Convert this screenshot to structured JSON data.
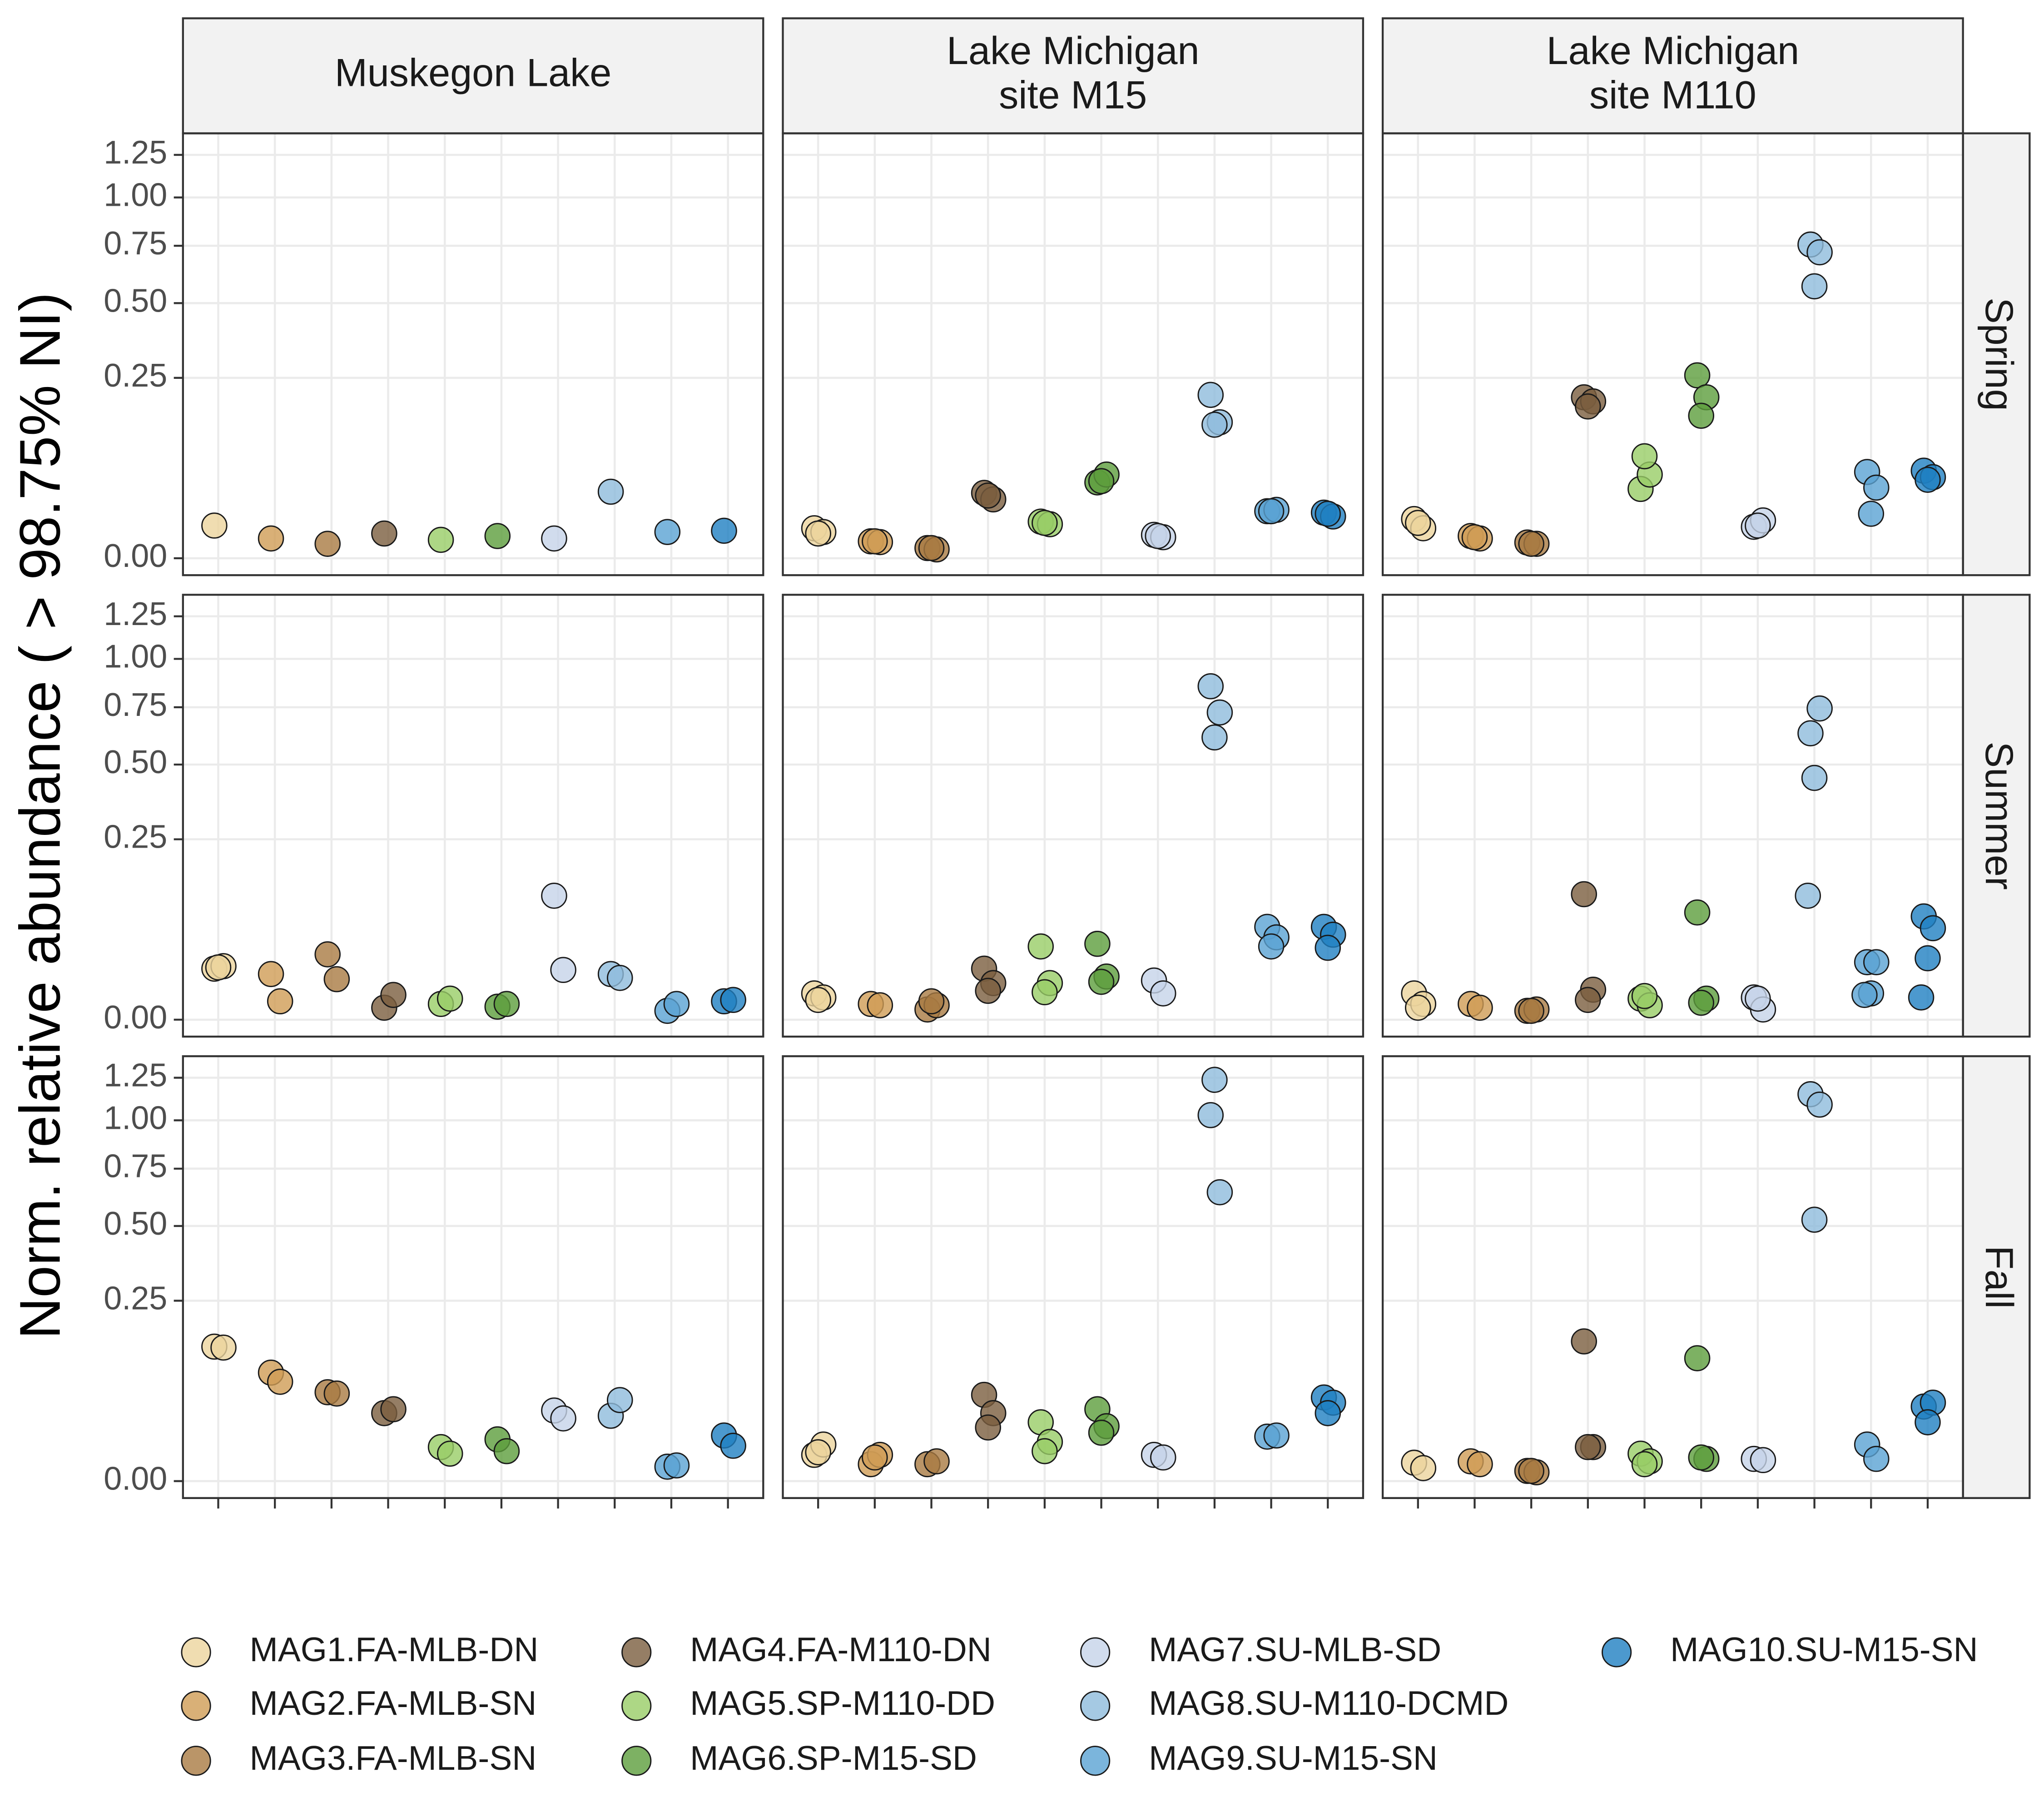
{
  "chart_data": {
    "type": "scatter",
    "y_label": "Norm. relative abundance ( > 98.75% NI)",
    "y_scale": "sqrt",
    "ylim": [
      -0.0022,
      1.387
    ],
    "yticks": [
      {
        "value": 0,
        "label": "0.00"
      },
      0.25,
      {
        "value": 0.5,
        "label": "0.50"
      },
      0.75,
      {
        "value": 1,
        "label": "1.00"
      },
      1.25
    ],
    "grid": true,
    "categories": [
      null,
      null,
      null,
      null,
      null,
      null,
      null,
      null,
      null,
      null
    ],
    "facet_columns": [
      [
        "Muskegon Lake"
      ],
      [
        "Lake Michigan",
        "site M15"
      ],
      [
        "Lake Michigan",
        "site M110"
      ]
    ],
    "facet_rows": [
      "Spring",
      "Summer",
      "Fall"
    ],
    "legend_position": "bottom",
    "series": [
      {
        "name": "MAG1.FA-MLB-DN",
        "color": "#ecd49d",
        "values": [
          [
            [
              0.0082
            ],
            [
              0.0069,
              0.0053,
              0.0047
            ],
            [
              0.0118,
              0.0069,
              0.0096
            ]
          ],
          [
            [
              0.02,
              0.022,
              0.021
            ],
            [
              0.0053,
              0.0038,
              0.003
            ],
            [
              0.0053,
              0.0019,
              0.0011
            ]
          ],
          [
            [
              0.139,
              0.137
            ],
            [
              0.0053,
              0.0103,
              0.0064
            ],
            [
              0.0026,
              0.0013
            ]
          ]
        ]
      },
      {
        "name": "MAG2.FA-MLB-SN",
        "color": "#d09c55",
        "values": [
          [
            [
              0.003
            ],
            [
              0.0022,
              0.002,
              0.0022
            ],
            [
              0.0038,
              0.003,
              0.0034
            ]
          ],
          [
            [
              0.016,
              0.0026
            ],
            [
              0.0019,
              0.0016
            ],
            [
              0.0019,
              0.0011
            ]
          ],
          [
            [
              0.0904,
              0.0758
            ],
            [
              0.0022,
              0.0053,
              0.0043
            ],
            [
              0.003,
              0.0022
            ]
          ]
        ]
      },
      {
        "name": "MAG3.FA-MLB-SN",
        "color": "#a97a42",
        "values": [
          [
            [
              0.0016
            ],
            [
              0.0008,
              0.0006,
              0.0008
            ],
            [
              0.0019,
              0.0016,
              0.0016
            ]
          ],
          [
            [
              0.0328,
              0.0126
            ],
            [
              0.0008,
              0.0016,
              0.0026
            ],
            [
              0.0006,
              0.0008,
              0.0006
            ]
          ],
          [
            [
              0.0607,
              0.0589
            ],
            [
              0.0022,
              0.003
            ],
            [
              0.0008,
              0.0006,
              0.0008
            ]
          ]
        ]
      },
      {
        "name": "MAG4.FA-M110-DN",
        "color": "#7a5e3e",
        "values": [
          [
            [
              0.0047
            ],
            [
              0.0328,
              0.0266,
              0.0302
            ],
            [
              0.199,
              0.189,
              0.177
            ]
          ],
          [
            [
              0.0011,
              0.0047
            ],
            [
              0.02,
              0.0103,
              0.0064
            ],
            [
              0.121,
              0.0069,
              0.003
            ]
          ],
          [
            [
              0.0355,
              0.0397
            ],
            [
              0.0572,
              0.0355,
              0.0221
            ],
            [
              0.15,
              0.0089,
              0.0089
            ]
          ]
        ]
      },
      {
        "name": "MAG5.SP-M110-DD",
        "color": "#98cd66",
        "values": [
          [
            [
              0.0026
            ],
            [
              0.0103,
              0.0089,
              0.0096
            ],
            [
              0.0369,
              0.0538,
              0.0799
            ]
          ],
          [
            [
              0.0019,
              0.0034
            ],
            [
              0.0412,
              0.0103,
              0.0058
            ],
            [
              0.0034,
              0.0016,
              0.0043
            ]
          ],
          [
            [
              0.0089,
              0.0058
            ],
            [
              0.0266,
              0.0118,
              0.0069
            ],
            [
              0.0058,
              0.003,
              0.0022
            ]
          ]
        ]
      },
      {
        "name": "MAG6.SP-M15-SD",
        "color": "#5c9e3c",
        "values": [
          [
            [
              0.0038
            ],
            [
              0.0442,
              0.0538,
              0.0457
            ],
            [
              0.257,
              0.199,
              0.156
            ]
          ],
          [
            [
              0.0013,
              0.0019
            ],
            [
              0.0442,
              0.0143,
              0.011
            ],
            [
              0.0883,
              0.0034,
              0.0022
            ]
          ],
          [
            [
              0.0134,
              0.0069
            ],
            [
              0.0397,
              0.0232,
              0.018
            ],
            [
              0.116,
              0.0038,
              0.0043
            ]
          ]
        ]
      },
      {
        "name": "MAG7.SU-MLB-SD",
        "color": "#c5d3e9",
        "values": [
          [
            [
              0.003
            ],
            [
              0.0042,
              0.0034,
              0.0038
            ],
            [
              0.0076,
              0.011,
              0.0082
            ]
          ],
          [
            [
              0.118,
              0.019
            ],
            [
              0.0118,
              0.0053
            ],
            [
              0.0038,
              0.0008,
              0.0034
            ]
          ],
          [
            [
              0.0383,
              0.0302
            ],
            [
              0.0053,
              0.0043
            ],
            [
              0.0038,
              0.0034
            ]
          ]
        ]
      },
      {
        "name": "MAG8.SU-M110-DCMD",
        "color": "#8fbbdc",
        "values": [
          [
            [
              0.034
            ],
            [
              0.205,
              0.142,
              0.137
            ],
            [
              0.756,
              0.719,
              0.568
            ]
          ],
          [
            [
              0.016,
              0.0134
            ],
            [
              0.854,
              0.725,
              0.612
            ],
            [
              0.63,
              0.744,
              0.449,
              0.118
            ]
          ],
          [
            [
              0.0328,
              0.0505
            ],
            [
              1.029,
              0.641,
              1.237
            ],
            [
              1.15,
              1.089,
              0.525
            ]
          ]
        ]
      },
      {
        "name": "MAG9.SU-M15-SN",
        "color": "#5aa3d3",
        "values": [
          [
            [
              0.0053
            ],
            [
              0.017,
              0.018,
              0.017
            ],
            [
              0.0572,
              0.0383,
              0.0152
            ]
          ],
          [
            [
              0.0006,
              0.0019
            ],
            [
              0.0662,
              0.0521,
              0.0412
            ],
            [
              0.0254,
              0.0254,
              0.0053,
              0.0047
            ]
          ],
          [
            [
              0.0016,
              0.0019
            ],
            [
              0.0152,
              0.016
            ],
            [
              0.0103,
              0.0038
            ]
          ]
        ]
      },
      {
        "name": "MAG10.SU-M15-SN",
        "color": "#1f7fc2",
        "values": [
          [
            [
              0.0058
            ],
            [
              0.016,
              0.0134,
              0.0152
            ],
            [
              0.0589,
              0.0505,
              0.0473
            ]
          ],
          [
            [
              0.0026,
              0.003
            ],
            [
              0.0662,
              0.0555,
              0.0397
            ],
            [
              0.0819,
              0.0643,
              0.029,
              0.0038
            ]
          ],
          [
            [
              0.016,
              0.0096
            ],
            [
              0.0538,
              0.0473,
              0.0355
            ],
            [
              0.0427,
              0.0473,
              0.0266
            ]
          ]
        ]
      }
    ]
  }
}
